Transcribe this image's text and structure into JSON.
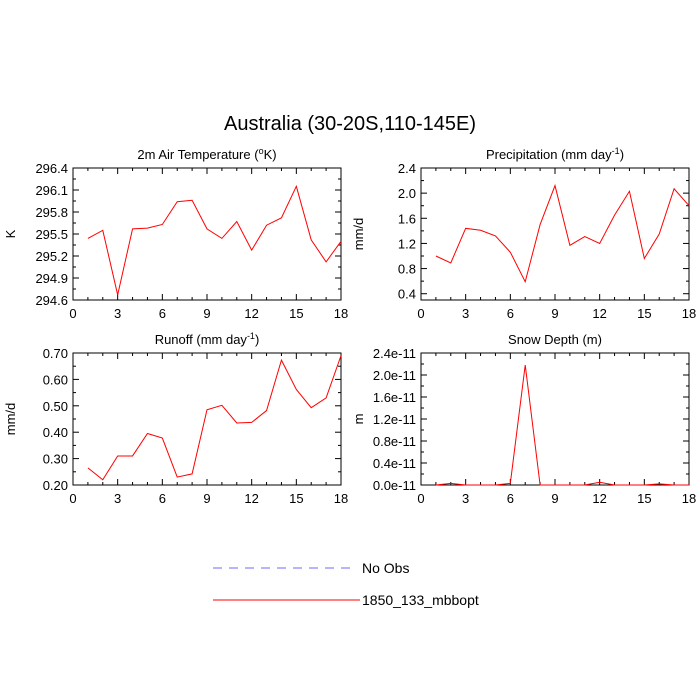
{
  "figure_title": "Australia (30-20S,110-145E)",
  "legend": [
    {
      "label": "No Obs",
      "color": "#6b6bff",
      "style": "dashed"
    },
    {
      "label": "1850_133_mbbopt",
      "color": "#ff0000",
      "style": "solid"
    }
  ],
  "chart_data": [
    {
      "type": "line",
      "title": "2m Air Temperature (°K)",
      "title_parts": [
        "2m Air Temperature (",
        "o",
        "K)"
      ],
      "ylabel": "K",
      "xlim": [
        0,
        18
      ],
      "xticks": [
        0,
        3,
        6,
        9,
        12,
        15,
        18
      ],
      "ylim": [
        294.6,
        296.4
      ],
      "yticks": [
        294.6,
        294.9,
        295.2,
        295.5,
        295.8,
        296.1,
        296.4
      ],
      "ytick_labels": [
        "294.6",
        "294.9",
        "295.2",
        "295.5",
        "295.8",
        "296.1",
        "296.4"
      ],
      "x": [
        1,
        2,
        3,
        4,
        5,
        6,
        7,
        8,
        9,
        10,
        11,
        12,
        13,
        14,
        15,
        16,
        17,
        18
      ],
      "series": [
        {
          "color": "#ff0000",
          "values": [
            295.44,
            295.55,
            294.67,
            295.57,
            295.58,
            295.63,
            295.94,
            295.96,
            295.57,
            295.44,
            295.67,
            295.28,
            295.62,
            295.72,
            296.15,
            295.42,
            295.12,
            295.4
          ]
        }
      ]
    },
    {
      "type": "line",
      "title": "Precipitation (mm day-1)",
      "title_parts": [
        "Precipitation (mm day",
        "-1",
        ")"
      ],
      "ylabel": "mm/d",
      "xlim": [
        0,
        18
      ],
      "xticks": [
        0,
        3,
        6,
        9,
        12,
        15,
        18
      ],
      "ylim": [
        0.3,
        2.4
      ],
      "yticks": [
        0.4,
        0.8,
        1.2,
        1.6,
        2.0,
        2.4
      ],
      "ytick_labels": [
        "0.4",
        "0.8",
        "1.2",
        "1.6",
        "2.0",
        "2.4"
      ],
      "x": [
        1,
        2,
        3,
        4,
        5,
        6,
        7,
        8,
        9,
        10,
        11,
        12,
        13,
        14,
        15,
        16,
        17,
        18
      ],
      "series": [
        {
          "color": "#ff0000",
          "values": [
            1.0,
            0.89,
            1.44,
            1.41,
            1.32,
            1.06,
            0.59,
            1.5,
            2.12,
            1.17,
            1.31,
            1.2,
            1.65,
            2.03,
            0.96,
            1.35,
            2.07,
            1.8
          ]
        }
      ]
    },
    {
      "type": "line",
      "title": "Runoff (mm day-1)",
      "title_parts": [
        "Runoff (mm day",
        "-1",
        ")"
      ],
      "ylabel": "mm/d",
      "xlim": [
        0,
        18
      ],
      "xticks": [
        0,
        3,
        6,
        9,
        12,
        15,
        18
      ],
      "ylim": [
        0.2,
        0.7
      ],
      "yticks": [
        0.2,
        0.3,
        0.4,
        0.5,
        0.6,
        0.7
      ],
      "ytick_labels": [
        "0.20",
        "0.30",
        "0.40",
        "0.50",
        "0.60",
        "0.70"
      ],
      "x": [
        1,
        2,
        3,
        4,
        5,
        6,
        7,
        8,
        9,
        10,
        11,
        12,
        13,
        14,
        15,
        16,
        17,
        18
      ],
      "series": [
        {
          "color": "#ff0000",
          "values": [
            0.265,
            0.22,
            0.31,
            0.31,
            0.395,
            0.378,
            0.23,
            0.242,
            0.485,
            0.502,
            0.435,
            0.437,
            0.482,
            0.673,
            0.562,
            0.493,
            0.53,
            0.69
          ]
        }
      ]
    },
    {
      "type": "line",
      "title": "Snow Depth (m)",
      "title_parts": [
        "Snow Depth (m)",
        "",
        ""
      ],
      "ylabel": "m",
      "xlim": [
        0,
        18
      ],
      "xticks": [
        0,
        3,
        6,
        9,
        12,
        15,
        18
      ],
      "ylim": [
        0,
        2.4e-11
      ],
      "yticks": [
        0,
        4e-12,
        8e-12,
        1.2e-11,
        1.6e-11,
        2e-11,
        2.4e-11
      ],
      "ytick_labels": [
        "0.0e-11",
        "0.4e-11",
        "0.8e-11",
        "1.2e-11",
        "1.6e-11",
        "2.0e-11",
        "2.4e-11"
      ],
      "x": [
        1,
        2,
        3,
        4,
        5,
        6,
        7,
        8,
        9,
        10,
        11,
        12,
        13,
        14,
        15,
        16,
        17,
        18
      ],
      "series": [
        {
          "color": "#ff0000",
          "values": [
            0,
            3e-13,
            0,
            0,
            0,
            3e-13,
            2.18e-11,
            0,
            0,
            0,
            0,
            5e-13,
            0,
            0,
            0,
            2e-13,
            0,
            0
          ]
        }
      ]
    }
  ]
}
